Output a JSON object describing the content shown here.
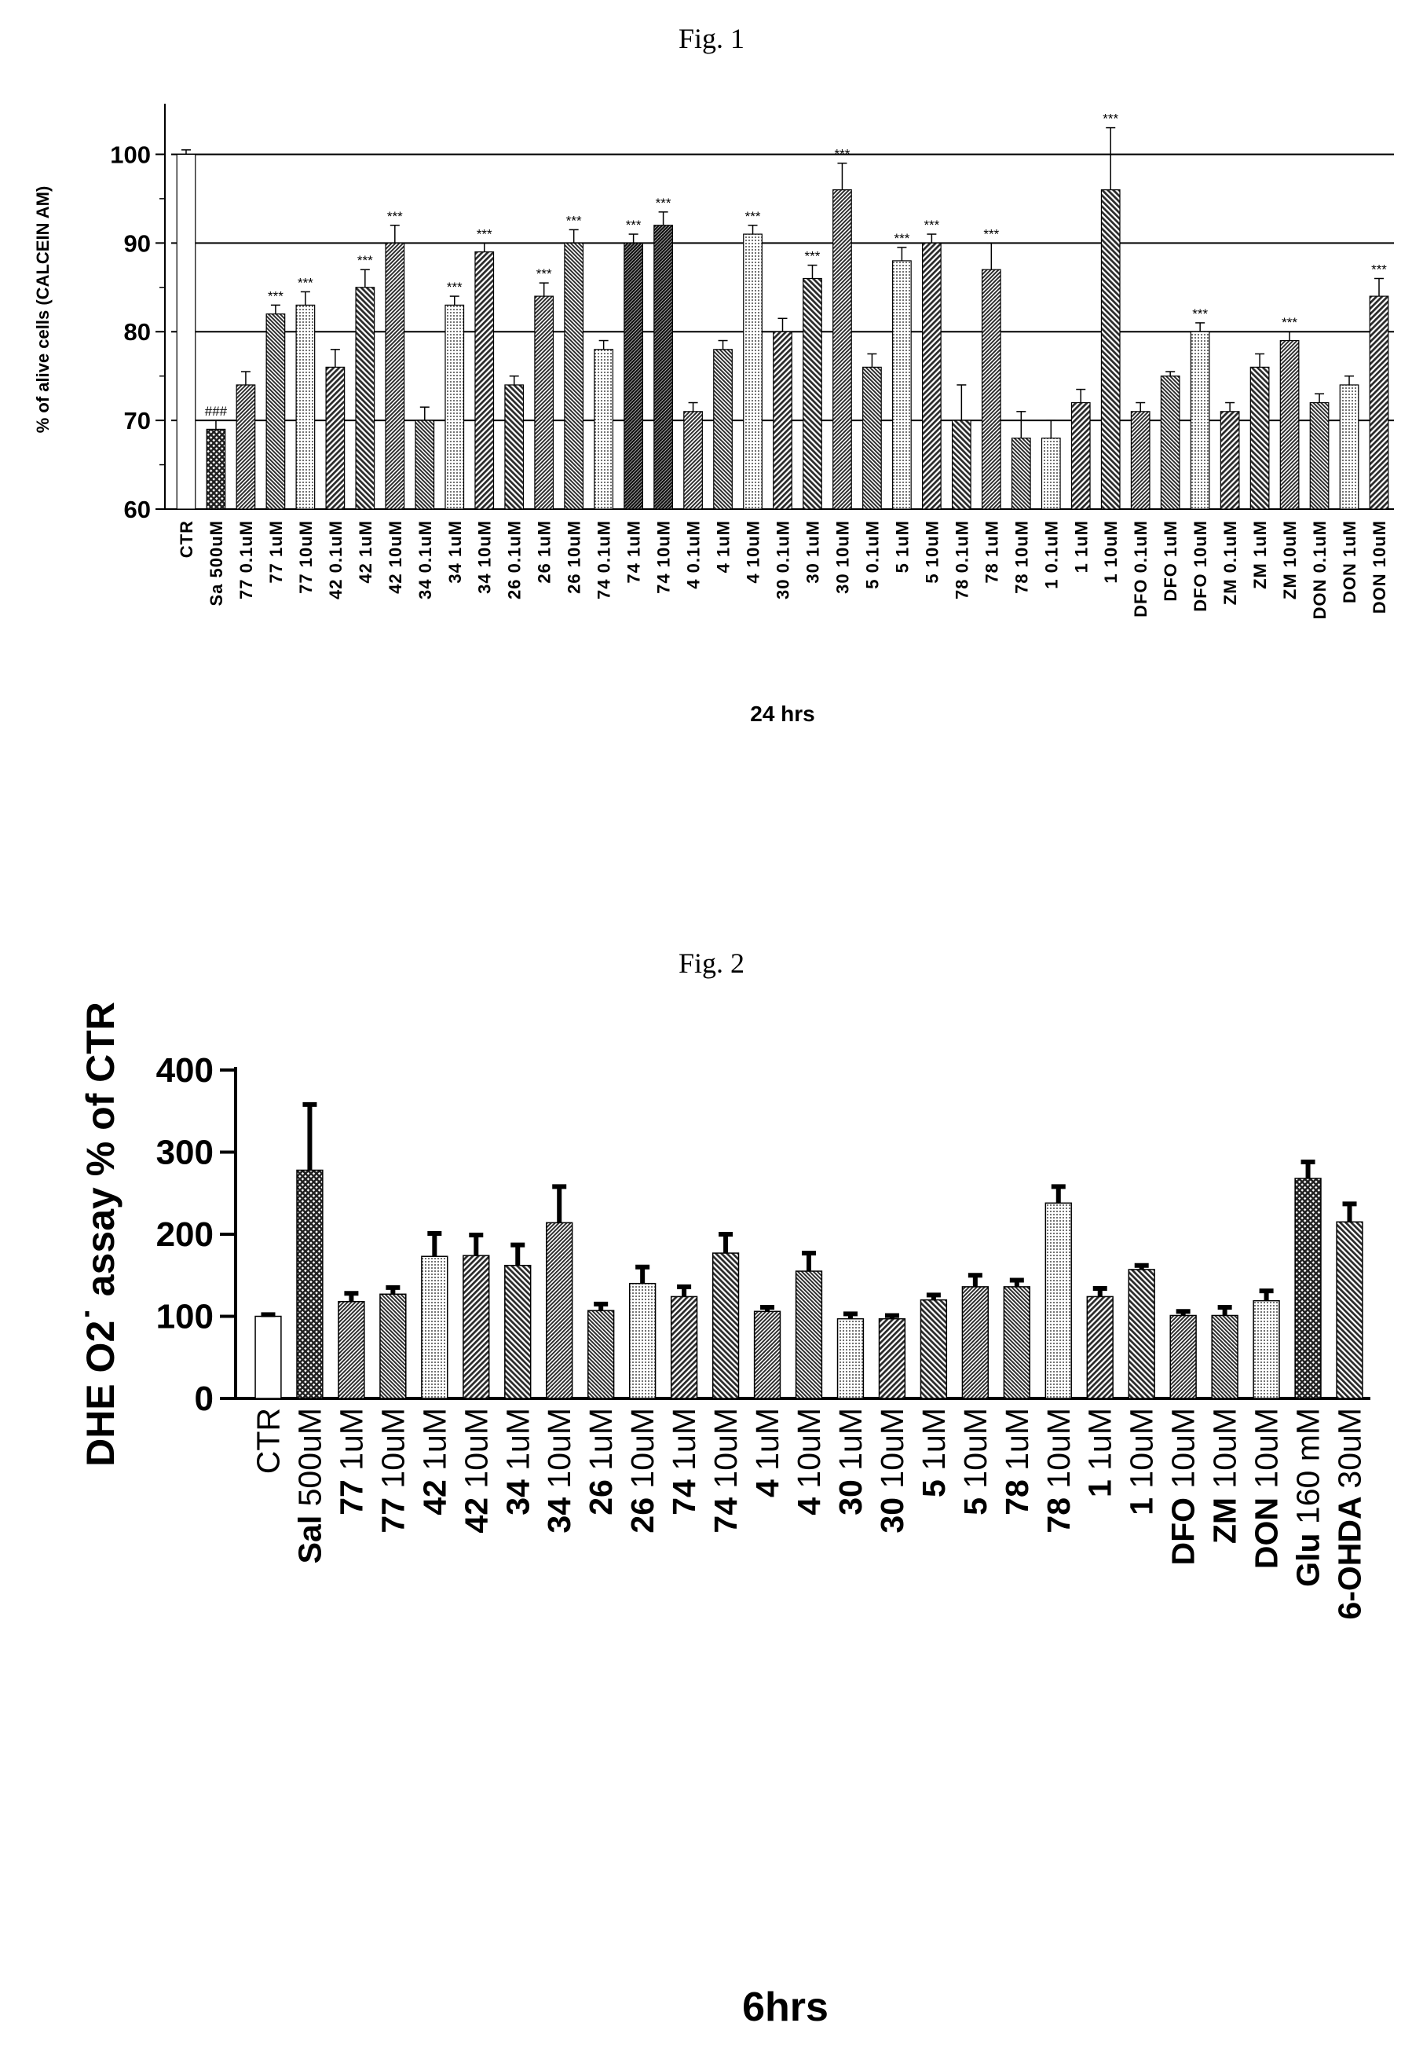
{
  "figures": {
    "fig1_caption": "Fig. 1",
    "fig2_caption": "Fig. 2"
  },
  "chart_data": [
    {
      "type": "bar",
      "ylabel": "% of alive cells (CALCEIN AM)",
      "xlabel": "24 hrs",
      "ylim": [
        60,
        105
      ],
      "yticks": [
        60,
        70,
        80,
        90,
        100
      ],
      "grid_lines": [
        70,
        80,
        90,
        100
      ],
      "categories": [
        "CTR",
        "Sa 500uM",
        "77 0.1uM",
        "77 1uM",
        "77 10uM",
        "42 0.1uM",
        "42 1uM",
        "42 10uM",
        "34 0.1uM",
        "34 1uM",
        "34 10uM",
        "26 0.1uM",
        "26 1uM",
        "26 10uM",
        "74 0.1uM",
        "74 1uM",
        "74 10uM",
        "4 0.1uM",
        "4 1uM",
        "4 10uM",
        "30 0.1uM",
        "30 1uM",
        "30 10uM",
        "5 0.1uM",
        "5 1uM",
        "5 10uM",
        "78 0.1uM",
        "78 1uM",
        "78 10uM",
        "1 0.1uM",
        "1 1uM",
        "1 10uM",
        "DFO 0.1uM",
        "DFO 1uM",
        "DFO 10uM",
        "ZM 0.1uM",
        "ZM 1uM",
        "ZM 10uM",
        "DON 0.1uM",
        "DON 1uM",
        "DON 10uM"
      ],
      "values": [
        100,
        69,
        74,
        82,
        83,
        76,
        85,
        90,
        70,
        83,
        89,
        74,
        84,
        90,
        78,
        90,
        92,
        71,
        78,
        91,
        80,
        86,
        96,
        76,
        88,
        90,
        70,
        87,
        68,
        68,
        72,
        96,
        71,
        75,
        80,
        71,
        76,
        79,
        72,
        74,
        84
      ],
      "errors": [
        0.5,
        1,
        1.5,
        1,
        1.5,
        2,
        2,
        2,
        1.5,
        1,
        1,
        1,
        1.5,
        1.5,
        1,
        1,
        1.5,
        1,
        1,
        1,
        1.5,
        1.5,
        3,
        1.5,
        1.5,
        1,
        4,
        3,
        3,
        2,
        1.5,
        7,
        1,
        0.5,
        1,
        1,
        1.5,
        1,
        1,
        1,
        2
      ],
      "annotations": [
        "",
        "###",
        "",
        "***",
        "***",
        "",
        "***",
        "***",
        "",
        "***",
        "***",
        "",
        "***",
        "***",
        "",
        "***",
        "***",
        "",
        "",
        "***",
        "",
        "***",
        "***",
        "",
        "***",
        "***",
        "",
        "***",
        "",
        "",
        "",
        "***",
        "",
        "",
        "***",
        "",
        "",
        "***",
        "",
        "",
        "***"
      ]
    },
    {
      "type": "bar",
      "ylabel": "DHE O2˙ assay % of CTR",
      "xlabel": "6hrs",
      "ylim": [
        0,
        400
      ],
      "yticks": [
        0,
        100,
        200,
        300,
        400
      ],
      "categories": [
        "CTR",
        "Sal 500uM",
        "77 1uM",
        "77 10uM",
        "42 1uM",
        "42 10uM",
        "34 1uM",
        "34 10uM",
        "26 1uM",
        "26 10uM",
        "74 1uM",
        "74 10uM",
        "4 1uM",
        "4 10uM",
        "30 1uM",
        "30 10uM",
        "5 1uM",
        "5 10uM",
        "78 1uM",
        "78 10uM",
        "1 1uM",
        "1 10uM",
        "DFO 10uM",
        "ZM 10uM",
        "DON 10uM",
        "Glu 160 mM",
        "6-OHDA 30uM"
      ],
      "values": [
        100,
        278,
        118,
        127,
        173,
        174,
        162,
        214,
        107,
        140,
        124,
        177,
        106,
        155,
        97,
        97,
        120,
        136,
        136,
        238,
        124,
        157,
        101,
        101,
        119,
        268,
        215
      ],
      "errors": [
        2,
        80,
        10,
        8,
        28,
        25,
        25,
        44,
        8,
        20,
        12,
        23,
        5,
        22,
        6,
        4,
        6,
        14,
        8,
        20,
        10,
        5,
        5,
        10,
        12,
        20,
        22
      ]
    }
  ]
}
